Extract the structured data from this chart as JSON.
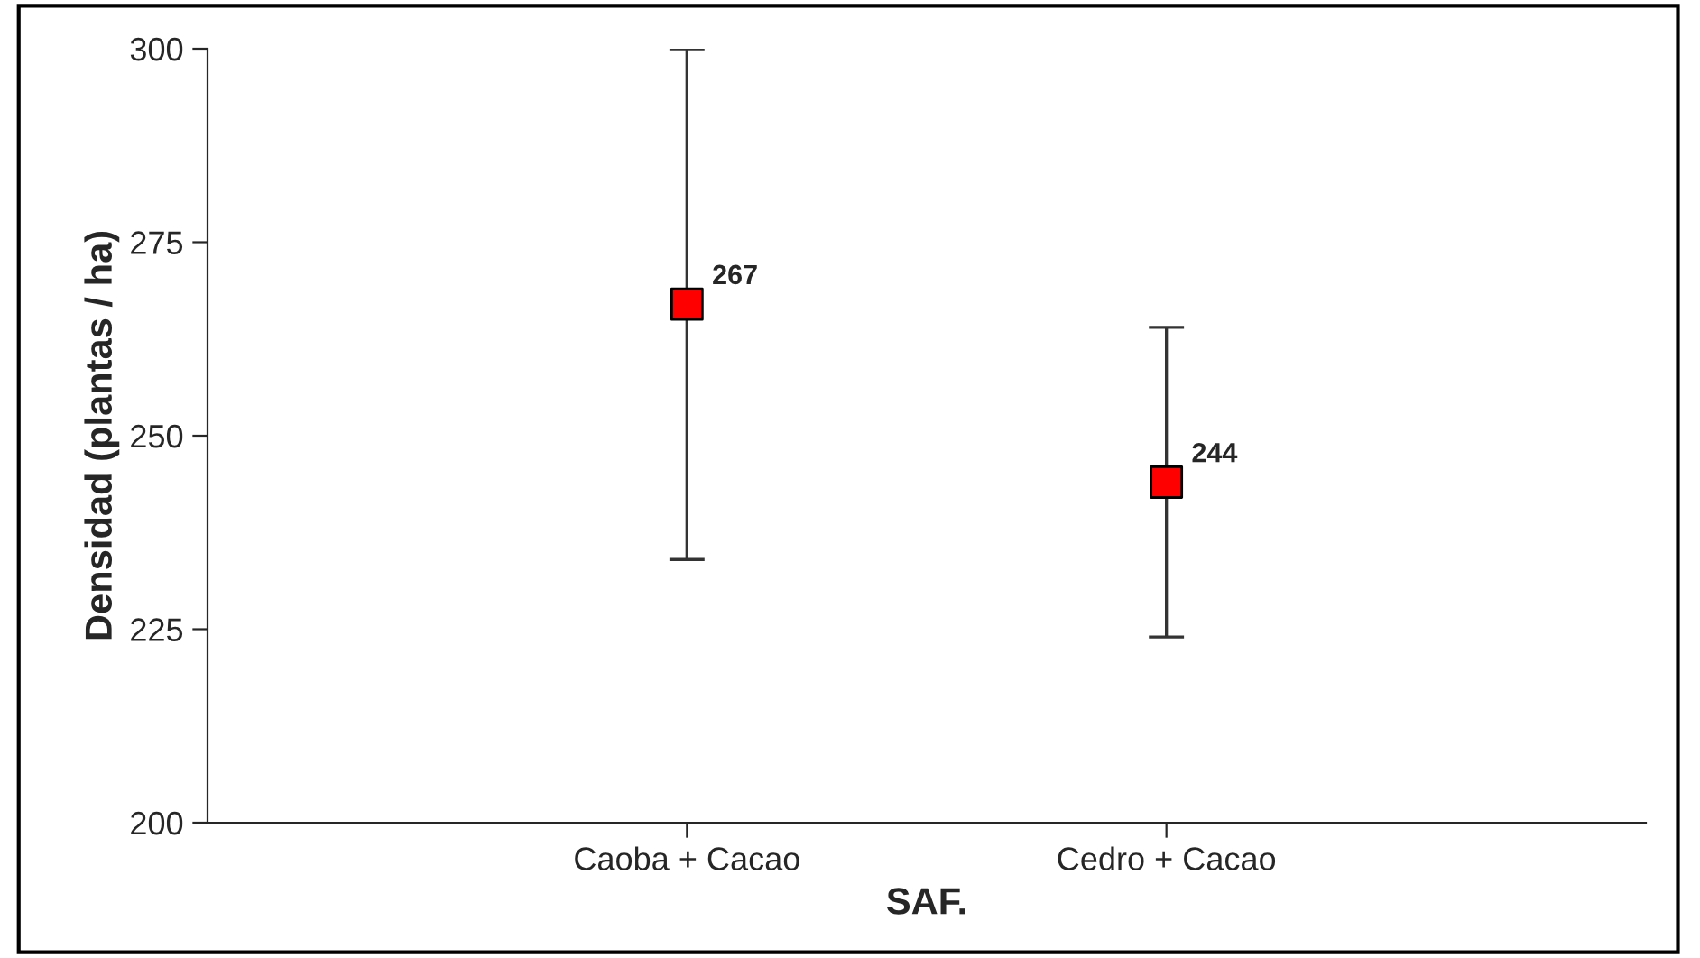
{
  "chart_data": {
    "type": "scatter",
    "xlabel": "SAF.",
    "ylabel": "Densidad (plantas / ha)",
    "categories": [
      "Caoba + Cacao",
      "Cedro + Cacao"
    ],
    "values": [
      267,
      244
    ],
    "errors": [
      33,
      20
    ],
    "color": "#ff0000",
    "marker": "square",
    "data_labels": true,
    "ylim": [
      200,
      300
    ],
    "yticks": [
      200,
      225,
      250,
      275,
      300
    ],
    "grid": false,
    "legend": false
  }
}
